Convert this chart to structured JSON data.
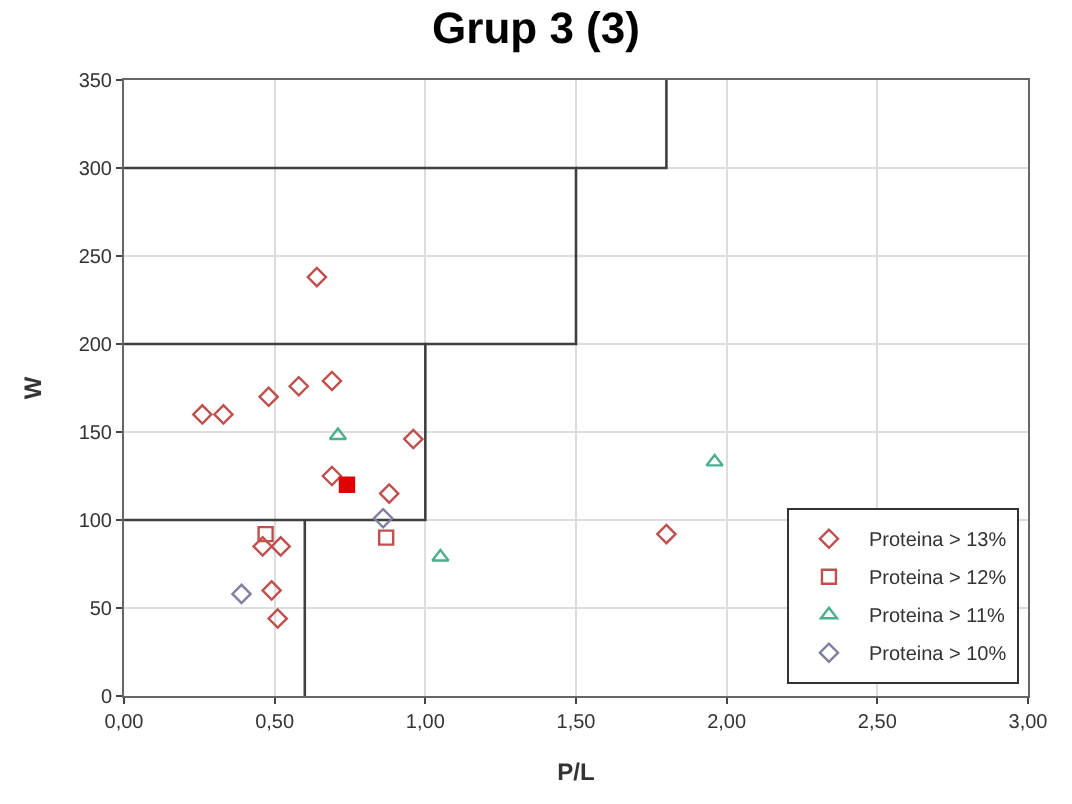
{
  "chart_data": {
    "type": "scatter",
    "title": "Grup 3 (3)",
    "xlabel": "P/L",
    "ylabel": "W",
    "xlim": [
      0,
      3
    ],
    "xticks": [
      {
        "value": 0,
        "label": "0,00"
      },
      {
        "value": 0.5,
        "label": "0,50"
      },
      {
        "value": 1,
        "label": "1,00"
      },
      {
        "value": 1.5,
        "label": "1,50"
      },
      {
        "value": 2,
        "label": "2,00"
      },
      {
        "value": 2.5,
        "label": "2,50"
      },
      {
        "value": 3,
        "label": "3,00"
      }
    ],
    "ylim": [
      0,
      350
    ],
    "yticks": [
      0,
      50,
      100,
      150,
      200,
      250,
      300,
      350
    ],
    "grid": true,
    "legend": "bottom right",
    "series": [
      {
        "type": "line",
        "color": "#404040",
        "marker": "none",
        "x": [
          0,
          1,
          1,
          0,
          null,
          0.6,
          0.6,
          null,
          1,
          1.5,
          1.5,
          0,
          null,
          1.5,
          1.8,
          1.8
        ],
        "values": [
          100,
          100,
          200,
          200,
          null,
          0,
          100,
          null,
          200,
          200,
          300,
          300,
          null,
          300,
          300,
          350
        ]
      },
      {
        "name": "Proteina > 13%",
        "color": "#c0504d",
        "marker": "diamond",
        "x": [
          0.26,
          0.33,
          0.48,
          0.58,
          0.69,
          0.64,
          0.96,
          0.69,
          0.88,
          0.46,
          0.52,
          0.49,
          0.51,
          1.8
        ],
        "values": [
          160,
          160,
          170,
          176,
          179,
          238,
          146,
          125,
          115,
          85,
          85,
          60,
          44,
          92
        ]
      },
      {
        "name": "Proteina > 12%",
        "color": "#c0504d",
        "marker": "square",
        "x": [
          0.47,
          0.87
        ],
        "values": [
          92,
          90
        ]
      },
      {
        "color": "#e00000",
        "marker": "square",
        "x": [
          0.74
        ],
        "values": [
          120
        ]
      },
      {
        "name": "Proteina > 11%",
        "color": "#4bb08a",
        "marker": "triangle",
        "x": [
          0.71,
          1.05,
          1.96
        ],
        "values": [
          148,
          79,
          133
        ]
      },
      {
        "name": "Proteina > 10%",
        "color": "#7f7fa0",
        "marker": "diamond",
        "x": [
          0.39,
          0.86
        ],
        "values": [
          58,
          101
        ]
      }
    ]
  }
}
